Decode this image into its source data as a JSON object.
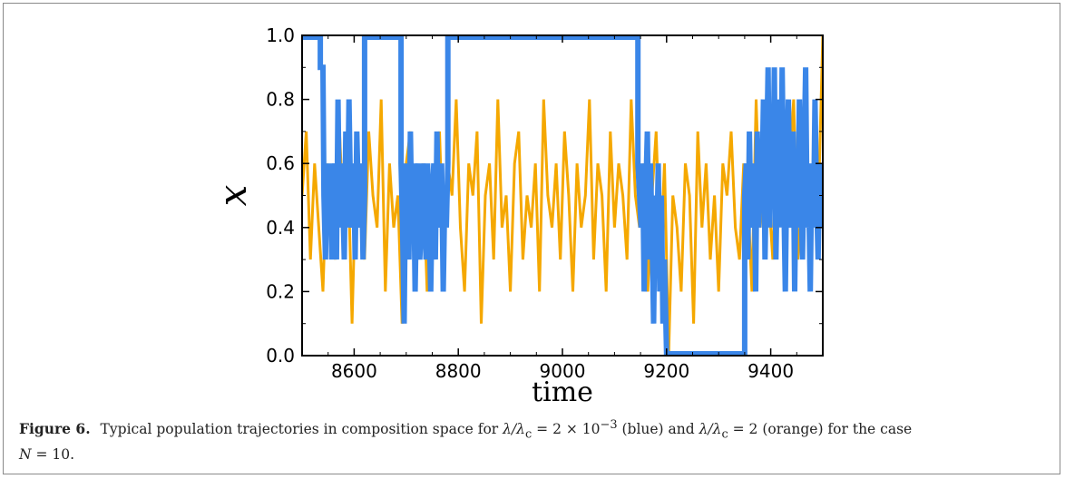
{
  "chart_data": {
    "type": "line",
    "xlabel": "time",
    "ylabel": "x",
    "xlim": [
      8500,
      9500
    ],
    "ylim": [
      0.0,
      1.0
    ],
    "x_ticks": [
      "8600",
      "8800",
      "9000",
      "9200",
      "9400"
    ],
    "y_ticks": [
      "0.0",
      "0.2",
      "0.4",
      "0.6",
      "0.8",
      "1.0"
    ],
    "grid": false,
    "series": [
      {
        "color": "#f5a800",
        "description_ref": "orange",
        "x": [
          8500,
          8508,
          8516,
          8524,
          8532,
          8540,
          8548,
          8556,
          8564,
          8572,
          8580,
          8588,
          8596,
          8604,
          8612,
          8620,
          8628,
          8636,
          8644,
          8652,
          8660,
          8668,
          8676,
          8684,
          8692,
          8700,
          8708,
          8716,
          8724,
          8732,
          8740,
          8748,
          8756,
          8764,
          8772,
          8780,
          8788,
          8796,
          8804,
          8812,
          8820,
          8828,
          8836,
          8844,
          8852,
          8860,
          8868,
          8876,
          8884,
          8892,
          8900,
          8908,
          8916,
          8924,
          8932,
          8940,
          8948,
          8956,
          8964,
          8972,
          8980,
          8988,
          8996,
          9004,
          9012,
          9020,
          9028,
          9036,
          9044,
          9052,
          9060,
          9068,
          9076,
          9084,
          9092,
          9100,
          9108,
          9116,
          9124,
          9132,
          9140,
          9148,
          9156,
          9164,
          9172,
          9180,
          9188,
          9196,
          9204,
          9212,
          9220,
          9228,
          9236,
          9244,
          9252,
          9260,
          9268,
          9276,
          9284,
          9292,
          9300,
          9308,
          9316,
          9324,
          9332,
          9340,
          9348,
          9356,
          9364,
          9372,
          9380,
          9388,
          9396,
          9404,
          9412,
          9420,
          9428,
          9436,
          9444,
          9452,
          9460,
          9468,
          9476,
          9484,
          9492,
          9500
        ],
        "values": [
          0.5,
          0.7,
          0.3,
          0.6,
          0.4,
          0.2,
          0.6,
          0.5,
          0.3,
          0.7,
          0.4,
          0.6,
          0.1,
          0.6,
          0.5,
          0.3,
          0.7,
          0.5,
          0.4,
          0.8,
          0.2,
          0.6,
          0.4,
          0.5,
          0.1,
          0.6,
          0.7,
          0.3,
          0.5,
          0.6,
          0.2,
          0.5,
          0.4,
          0.7,
          0.3,
          0.6,
          0.5,
          0.8,
          0.4,
          0.2,
          0.6,
          0.5,
          0.7,
          0.1,
          0.5,
          0.6,
          0.3,
          0.8,
          0.4,
          0.5,
          0.2,
          0.6,
          0.7,
          0.3,
          0.5,
          0.4,
          0.6,
          0.2,
          0.8,
          0.5,
          0.4,
          0.6,
          0.3,
          0.7,
          0.5,
          0.2,
          0.6,
          0.4,
          0.5,
          0.8,
          0.3,
          0.6,
          0.5,
          0.2,
          0.7,
          0.4,
          0.6,
          0.5,
          0.3,
          0.8,
          0.5,
          0.4,
          0.6,
          0.2,
          0.5,
          0.7,
          0.3,
          0.6,
          0.0,
          0.5,
          0.4,
          0.2,
          0.6,
          0.5,
          0.1,
          0.7,
          0.4,
          0.6,
          0.3,
          0.5,
          0.2,
          0.6,
          0.5,
          0.7,
          0.4,
          0.3,
          0.6,
          0.5,
          0.2,
          0.8,
          0.4,
          0.6,
          0.5,
          0.3,
          0.7,
          0.5,
          0.4,
          0.6,
          0.8,
          0.3,
          0.5,
          0.7,
          0.4,
          0.6,
          0.5,
          1.0
        ]
      },
      {
        "color": "#3a86e8",
        "description_ref": "blue",
        "x": [
          8500,
          8535,
          8535,
          8540,
          8542,
          8545,
          8548,
          8551,
          8554,
          8557,
          8560,
          8563,
          8566,
          8569,
          8572,
          8575,
          8578,
          8581,
          8584,
          8587,
          8590,
          8593,
          8596,
          8599,
          8602,
          8605,
          8608,
          8611,
          8614,
          8617,
          8620,
          8620,
          8690,
          8690,
          8693,
          8696,
          8699,
          8702,
          8705,
          8708,
          8711,
          8714,
          8717,
          8720,
          8723,
          8726,
          8729,
          8732,
          8735,
          8738,
          8741,
          8744,
          8747,
          8750,
          8753,
          8756,
          8759,
          8762,
          8765,
          8768,
          8771,
          8774,
          8777,
          8780,
          8780,
          9145,
          9145,
          9148,
          9151,
          9154,
          9157,
          9160,
          9163,
          9166,
          9169,
          9172,
          9175,
          9178,
          9181,
          9184,
          9187,
          9190,
          9193,
          9196,
          9200,
          9200,
          9350,
          9350,
          9353,
          9356,
          9359,
          9362,
          9365,
          9368,
          9371,
          9374,
          9377,
          9380,
          9383,
          9386,
          9389,
          9392,
          9395,
          9398,
          9401,
          9404,
          9407,
          9410,
          9413,
          9416,
          9419,
          9422,
          9425,
          9428,
          9431,
          9434,
          9437,
          9440,
          9443,
          9446,
          9449,
          9452,
          9455,
          9458,
          9461,
          9464,
          9467,
          9470,
          9473,
          9476,
          9479,
          9482,
          9485,
          9488,
          9491,
          9494,
          9497,
          9500
        ],
        "values": [
          1.0,
          1.0,
          0.9,
          0.9,
          0.5,
          0.3,
          0.6,
          0.4,
          0.6,
          0.3,
          0.5,
          0.6,
          0.3,
          0.8,
          0.4,
          0.6,
          0.5,
          0.3,
          0.7,
          0.4,
          0.8,
          0.5,
          0.4,
          0.6,
          0.3,
          0.7,
          0.5,
          0.4,
          0.6,
          0.3,
          0.5,
          1.0,
          1.0,
          0.6,
          0.4,
          0.1,
          0.6,
          0.5,
          0.3,
          0.7,
          0.4,
          0.6,
          0.2,
          0.5,
          0.6,
          0.3,
          0.4,
          0.6,
          0.5,
          0.3,
          0.6,
          0.4,
          0.2,
          0.5,
          0.6,
          0.3,
          0.7,
          0.4,
          0.5,
          0.6,
          0.2,
          0.5,
          0.4,
          0.6,
          1.0,
          1.0,
          0.6,
          0.5,
          0.4,
          0.6,
          0.2,
          0.5,
          0.7,
          0.3,
          0.6,
          0.4,
          0.1,
          0.5,
          0.3,
          0.6,
          0.2,
          0.5,
          0.1,
          0.3,
          0.0,
          0.0,
          0.0,
          0.5,
          0.6,
          0.3,
          0.7,
          0.4,
          0.5,
          0.6,
          0.2,
          0.7,
          0.4,
          0.6,
          0.5,
          0.8,
          0.3,
          0.6,
          0.9,
          0.4,
          0.7,
          0.5,
          0.9,
          0.3,
          0.6,
          0.8,
          0.4,
          0.9,
          0.5,
          0.2,
          0.6,
          0.8,
          0.4,
          0.5,
          0.7,
          0.2,
          0.6,
          0.4,
          0.8,
          0.5,
          0.3,
          0.6,
          0.9,
          0.4,
          0.5,
          0.2,
          0.6,
          0.4,
          0.8,
          0.5,
          0.3,
          0.6,
          0.4,
          0.5
        ]
      }
    ]
  },
  "caption": {
    "label": "Figure 6.",
    "text_prefix": "Typical population trajectories in composition space for",
    "lambda_ratio_1": "λ/λ",
    "sub_c": "c",
    "value_1": " = 2 × 10",
    "exp_1": "−3",
    "blue": " (blue) and ",
    "value_2": " = 2 (orange) for the case",
    "n_var": "N",
    "n_value": " = 10."
  }
}
